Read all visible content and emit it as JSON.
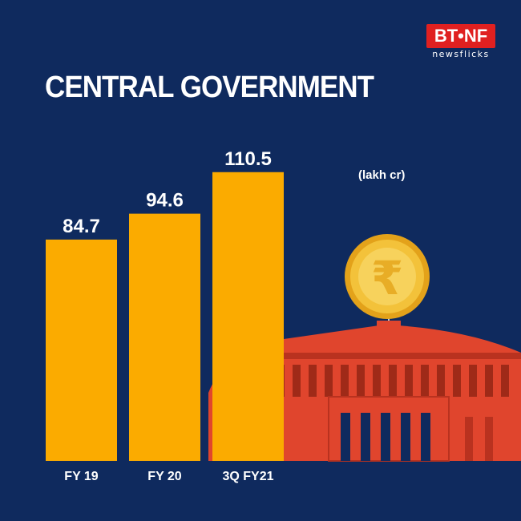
{
  "brand": {
    "name": "BT•NF",
    "tagline": "newsflicks",
    "color": "#e02020"
  },
  "title": "CENTRAL GOVERNMENT",
  "unit_label": "(lakh cr)",
  "colors": {
    "background": "#0f2a5e",
    "bar": "#fbab00",
    "building": "#e0452d",
    "coin": "#f3c23a"
  },
  "chart_data": {
    "type": "bar",
    "categories": [
      "FY 19",
      "FY 20",
      "3Q FY21"
    ],
    "values": [
      84.7,
      94.6,
      110.5
    ],
    "value_labels": [
      "84.7",
      "94.6",
      "110.5"
    ],
    "title": "CENTRAL GOVERNMENT",
    "ylabel": "(lakh cr)",
    "ylim": [
      0,
      150
    ],
    "grid": false
  }
}
